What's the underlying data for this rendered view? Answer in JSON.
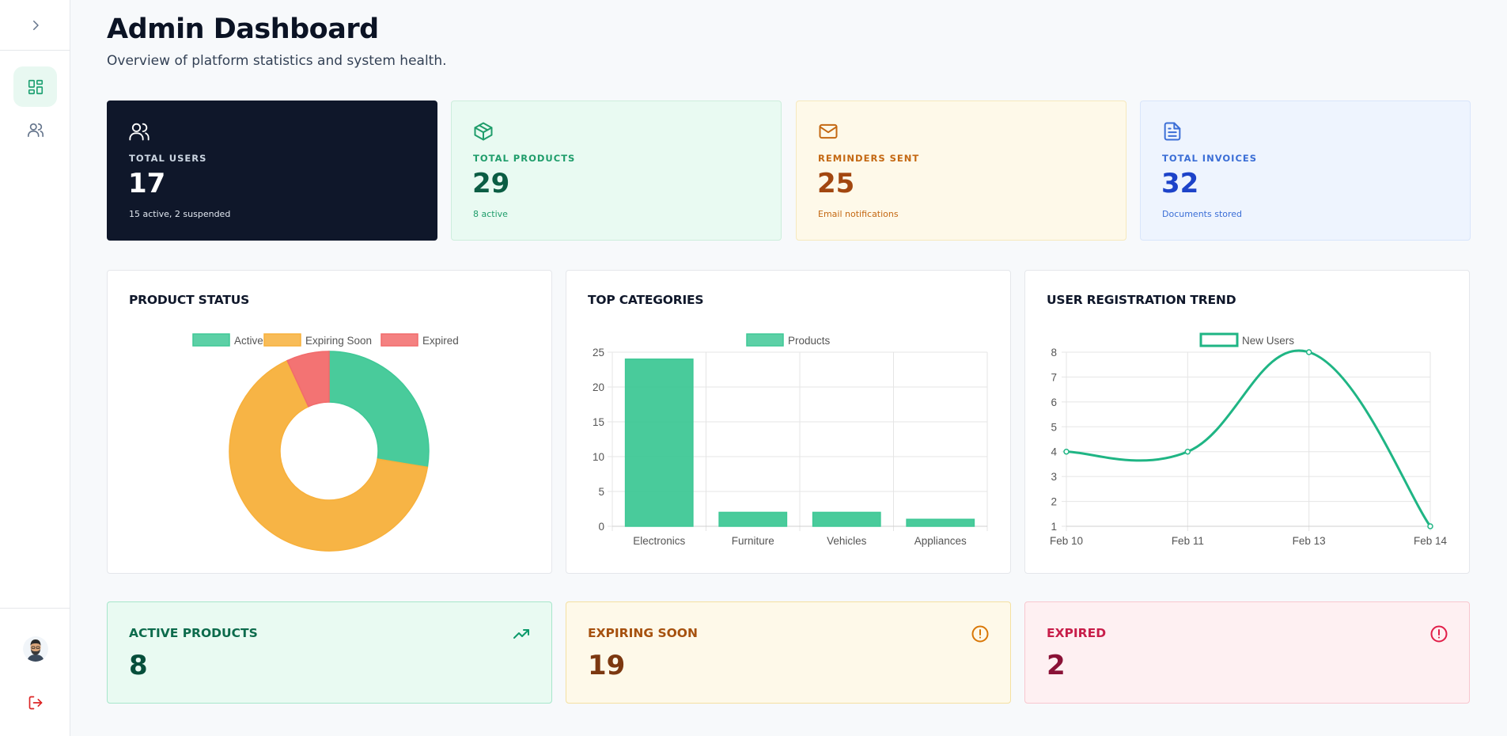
{
  "sidebar": {
    "toggle_icon": "chevron-right-icon",
    "items": [
      {
        "name": "dashboard",
        "icon": "grid-icon",
        "active": true
      },
      {
        "name": "users",
        "icon": "users-icon",
        "active": false
      }
    ],
    "avatar_icon": "user-avatar",
    "logout_icon": "logout-icon"
  },
  "header": {
    "title": "Admin Dashboard",
    "subtitle": "Overview of platform statistics and system health."
  },
  "stats": [
    {
      "icon": "users-icon",
      "label": "TOTAL USERS",
      "value": "17",
      "sub": "15 active, 2 suspended",
      "color": "#0f172a"
    },
    {
      "icon": "package-icon",
      "label": "TOTAL PRODUCTS",
      "value": "29",
      "sub": "8 active",
      "color": "#1f9d6b"
    },
    {
      "icon": "mail-icon",
      "label": "REMINDERS SENT",
      "value": "25",
      "sub": "Email notifications",
      "color": "#c46812"
    },
    {
      "icon": "file-text-icon",
      "label": "TOTAL INVOICES",
      "value": "32",
      "sub": "Documents stored",
      "color": "#3b6ed6"
    }
  ],
  "panels": {
    "product_status": {
      "title": "PRODUCT STATUS"
    },
    "top_categories": {
      "title": "TOP CATEGORIES"
    },
    "registration_trend": {
      "title": "USER REGISTRATION TREND"
    }
  },
  "chart_data": [
    {
      "type": "pie",
      "title": "PRODUCT STATUS",
      "legend": "top",
      "categories": [
        "Active",
        "Expiring Soon",
        "Expired"
      ],
      "values": [
        8,
        19,
        2
      ],
      "colors": [
        "#3fc896",
        "#f7b03b",
        "#f26b6b"
      ]
    },
    {
      "type": "bar",
      "title": "TOP CATEGORIES",
      "legend": "top",
      "categories": [
        "Electronics",
        "Furniture",
        "Vehicles",
        "Appliances"
      ],
      "series": [
        {
          "name": "Products",
          "values": [
            24,
            2,
            2,
            1
          ]
        }
      ],
      "ylim": [
        0,
        25
      ],
      "yticks": [
        "0",
        "5",
        "10",
        "15",
        "20",
        "25"
      ],
      "grid": true,
      "color": "#3fc896"
    },
    {
      "type": "line",
      "title": "USER REGISTRATION TREND",
      "legend": "top",
      "categories": [
        "Feb 10",
        "Feb 11",
        "Feb 13",
        "Feb 14"
      ],
      "series": [
        {
          "name": "New Users",
          "values": [
            4,
            4,
            8,
            1
          ]
        }
      ],
      "ylim": [
        1,
        8
      ],
      "yticks": [
        "1",
        "2",
        "3",
        "4",
        "5",
        "6",
        "7",
        "8"
      ],
      "grid": true,
      "color": "#1fb584"
    }
  ],
  "status_cards": [
    {
      "label": "ACTIVE PRODUCTS",
      "value": "8",
      "icon": "trending-up-icon",
      "color": "#0c9a6b"
    },
    {
      "label": "EXPIRING SOON",
      "value": "19",
      "icon": "alert-circle-icon",
      "color": "#d97706"
    },
    {
      "label": "EXPIRED",
      "value": "2",
      "icon": "alert-circle-icon",
      "color": "#e11d48"
    }
  ]
}
